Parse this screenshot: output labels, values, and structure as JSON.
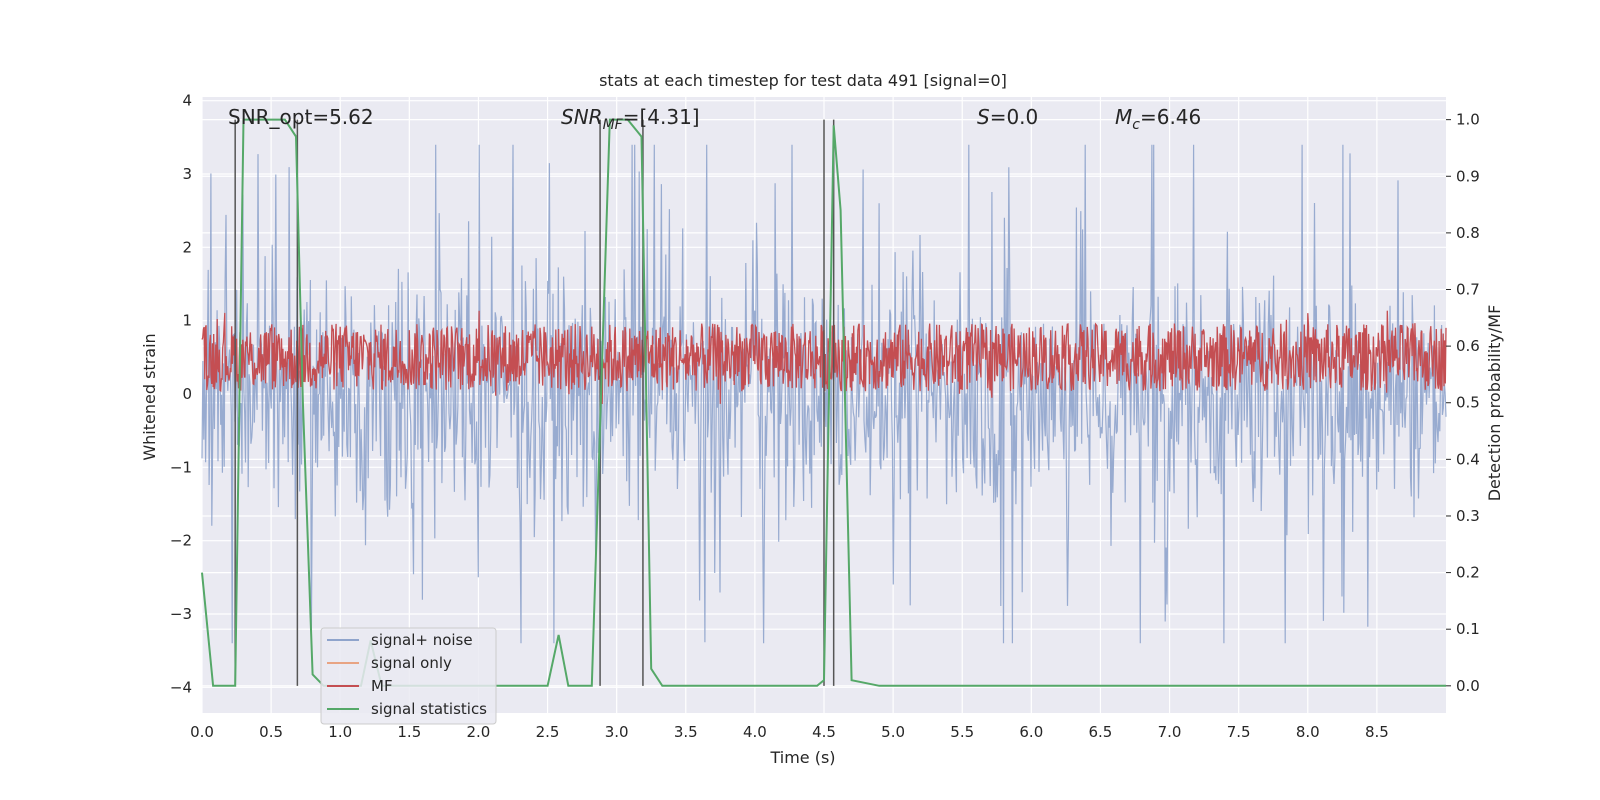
{
  "chart_data": {
    "type": "line",
    "title": "stats at each timestep for test data 491 [signal=0]",
    "xlabel": "Time (s)",
    "ylabel": "Whitened strain",
    "y2label": "Detection probability/MF",
    "xlim": [
      0.0,
      9.0
    ],
    "ylim": [
      -4.35,
      4.05
    ],
    "y2lim": [
      -0.048,
      1.04
    ],
    "xticks": [
      "0.0",
      "0.5",
      "1.0",
      "1.5",
      "2.0",
      "2.5",
      "3.0",
      "3.5",
      "4.0",
      "4.5",
      "5.0",
      "5.5",
      "6.0",
      "6.5",
      "7.0",
      "7.5",
      "8.0",
      "8.5"
    ],
    "yticks": [
      "−4",
      "−3",
      "−2",
      "−1",
      "0",
      "1",
      "2",
      "3",
      "4"
    ],
    "y2ticks": [
      "0.0",
      "0.1",
      "0.2",
      "0.3",
      "0.4",
      "0.5",
      "0.6",
      "0.7",
      "0.8",
      "0.9",
      "1.0"
    ],
    "grid": true,
    "legend_position": "lower-left",
    "annotations": {
      "snr_opt": "SNR_opt=5.62",
      "snr_mf_main": "SNR",
      "snr_mf_sub": "MF",
      "snr_mf_value": "=[4.31]",
      "s_main": "S",
      "s_value": "=0.0",
      "mc_main": "M",
      "mc_sub": "c",
      "mc_value": "=6.46"
    },
    "series": [
      {
        "name": "signal+ noise",
        "color": "#8fa4cc",
        "kind": "noise",
        "amplitude_range": [
          -3.4,
          3.4
        ]
      },
      {
        "name": "signal only",
        "color": "#e8a483",
        "values": []
      },
      {
        "name": "MF",
        "color": "#c44e52",
        "kind": "band",
        "y2_range": [
          0.52,
          0.64
        ]
      },
      {
        "name": "signal statistics",
        "color": "#55a868",
        "x": [
          0.0,
          0.08,
          0.24,
          0.3,
          0.6,
          0.68,
          0.73,
          0.8,
          0.88,
          1.0,
          1.15,
          1.22,
          1.3,
          2.4,
          2.5,
          2.58,
          2.65,
          2.82,
          2.95,
          3.08,
          3.18,
          3.25,
          3.33,
          3.6,
          4.45,
          4.5,
          4.57,
          4.62,
          4.7,
          4.9,
          9.0
        ],
        "y2": [
          0.2,
          0.0,
          0.0,
          1.0,
          1.0,
          0.97,
          0.5,
          0.02,
          0.0,
          0.0,
          0.0,
          0.08,
          0.0,
          0.0,
          0.0,
          0.09,
          0.0,
          0.0,
          1.0,
          1.0,
          0.97,
          0.03,
          0.0,
          0.0,
          0.0,
          0.01,
          0.99,
          0.84,
          0.01,
          0.0,
          0.0
        ]
      }
    ],
    "vlines_x": [
      0.24,
      0.69,
      2.88,
      3.19,
      4.5,
      4.57
    ]
  }
}
